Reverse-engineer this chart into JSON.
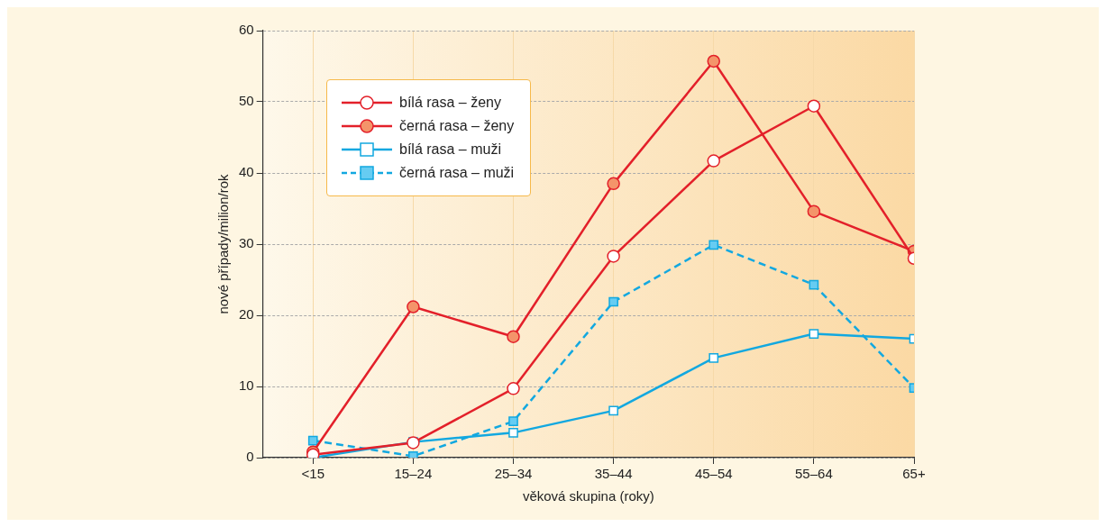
{
  "chart_data": {
    "type": "line",
    "xlabel": "věková skupina (roky)",
    "ylabel": "nové případy/milion/rok",
    "categories": [
      "<15",
      "15–24",
      "25–34",
      "35–44",
      "45–54",
      "55–64",
      "65+"
    ],
    "series": [
      {
        "name": "bílá rasa – ženy",
        "color": "#e3202a",
        "marker": "circle",
        "line_style": "solid",
        "values": [
          0.4,
          2.1,
          9.7,
          28.3,
          41.7,
          49.4,
          28.0
        ]
      },
      {
        "name": "černá rasa – ženy",
        "color": "#e3202a",
        "marker": "circle",
        "line_style": "solid",
        "colors": [
          "#f4946a",
          "#f4946a",
          "#f4946a",
          "#f4946a",
          "#f4946a",
          "#f4946a",
          "#f4946a"
        ],
        "values": [
          0.8,
          21.2,
          17.0,
          38.5,
          55.7,
          34.6,
          29.0
        ]
      },
      {
        "name": "bílá rasa – muži",
        "color": "#12a8e0",
        "marker": "square",
        "line_style": "solid",
        "values": [
          0.0,
          2.2,
          3.5,
          6.6,
          14.0,
          17.4,
          16.7
        ]
      },
      {
        "name": "černá rasa – muži",
        "color": "#12a8e0",
        "marker": "square",
        "line_style": "dashed",
        "colors": [
          "#66ccf2",
          "#66ccf2",
          "#66ccf2",
          "#66ccf2",
          "#66ccf2",
          "#66ccf2",
          "#66ccf2"
        ],
        "values": [
          2.4,
          0.2,
          5.1,
          21.9,
          29.9,
          24.3,
          9.8
        ]
      }
    ],
    "ylim": [
      0,
      60
    ],
    "yticks": [
      0,
      10,
      20,
      30,
      40,
      50,
      60
    ],
    "grid": true,
    "legend": "top left"
  }
}
